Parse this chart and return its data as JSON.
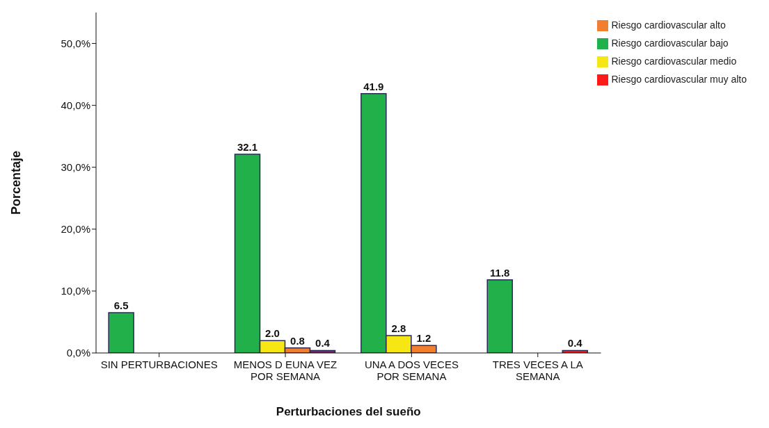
{
  "chart_data": {
    "type": "bar",
    "xlabel": "Perturbaciones del sueño",
    "ylabel": "Porcentaje",
    "categories": [
      "SIN PERTURBACIONES",
      "MENOS D EUNA VEZ POR SEMANA",
      "UNA A DOS VECES POR SEMANA",
      "TRES VECES A LA SEMANA"
    ],
    "series": [
      {
        "name": "Riesgo cardiovascular bajo",
        "color": "#22b04b",
        "values": [
          6.5,
          32.1,
          41.9,
          11.8
        ],
        "value_labels": [
          "6.5",
          "32.1",
          "41.9",
          "11.8"
        ]
      },
      {
        "name": "Riesgo cardiovascular medio",
        "color": "#f5e614",
        "values": [
          null,
          2.0,
          2.8,
          null
        ],
        "value_labels": [
          null,
          "2.0",
          "2.8",
          null
        ]
      },
      {
        "name": "Riesgo cardiovascular alto",
        "color": "#f08030",
        "values": [
          null,
          0.8,
          1.2,
          null
        ],
        "value_labels": [
          null,
          "0.8",
          "1.2",
          null
        ]
      },
      {
        "name": "Riesgo cardiovascular muy alto",
        "color": "#ff1a1a",
        "colors": [
          null,
          "#7a2a5e",
          null,
          "#ff1a1a"
        ],
        "values": [
          null,
          0.4,
          null,
          0.4
        ],
        "value_labels": [
          null,
          "0.4",
          null,
          "0.4"
        ]
      }
    ],
    "ylim": [
      0,
      55
    ],
    "yticks": [
      {
        "value": 0,
        "label": "0,0%"
      },
      {
        "value": 10,
        "label": "10,0%"
      },
      {
        "value": 20,
        "label": "20,0%"
      },
      {
        "value": 30,
        "label": "30,0%"
      },
      {
        "value": 40,
        "label": "40,0%"
      },
      {
        "value": 50,
        "label": "50,0%"
      }
    ],
    "grid": false,
    "legend": "top right"
  }
}
